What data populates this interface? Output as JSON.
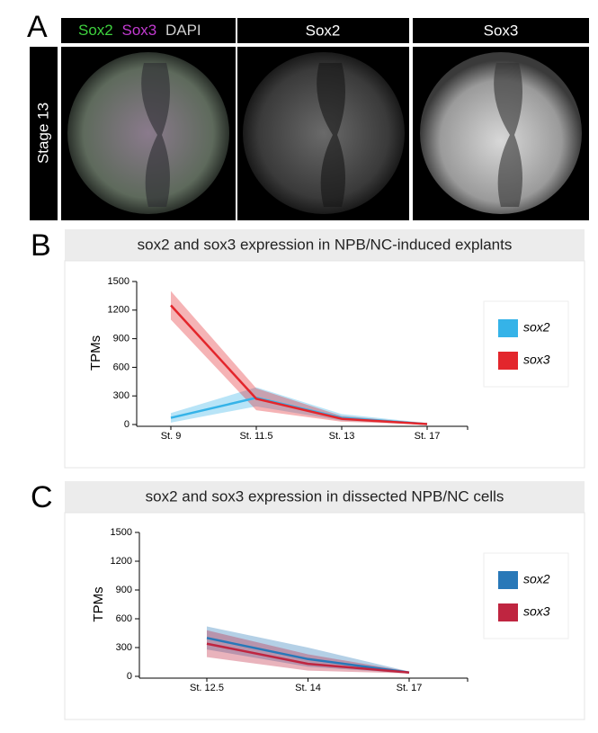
{
  "panel_a": {
    "panel_label": "A",
    "header_labels": [
      "Sox2",
      "Sox3",
      "DAPI"
    ],
    "column_titles": [
      "Sox2",
      "Sox3"
    ],
    "row_label": "Stage 13"
  },
  "chart_data": [
    {
      "type": "line",
      "panel_label": "B",
      "title": "sox2 and sox3 expression in NPB/NC-induced explants",
      "y_label": "TPMs",
      "categories": [
        "St. 9",
        "St. 11.5",
        "St. 13",
        "St. 17"
      ],
      "ylim": [
        0,
        1500
      ],
      "yticks": [
        0,
        300,
        600,
        900,
        1200,
        1500
      ],
      "series": [
        {
          "name": "sox2",
          "color": "#35b3e8",
          "values": [
            70,
            280,
            70,
            5
          ],
          "lower": [
            20,
            190,
            40,
            0
          ],
          "upper": [
            120,
            390,
            110,
            15
          ]
        },
        {
          "name": "sox3",
          "color": "#e3262c",
          "values": [
            1250,
            270,
            60,
            5
          ],
          "lower": [
            1100,
            150,
            30,
            0
          ],
          "upper": [
            1400,
            380,
            90,
            12
          ]
        }
      ]
    },
    {
      "type": "line",
      "panel_label": "C",
      "title": "sox2 and sox3 expression in dissected NPB/NC cells",
      "y_label": "TPMs",
      "categories": [
        "St. 12.5",
        "St. 14",
        "St. 17"
      ],
      "ylim": [
        0,
        1500
      ],
      "yticks": [
        0,
        300,
        600,
        900,
        1200,
        1500
      ],
      "series": [
        {
          "name": "sox2",
          "color": "#2878b8",
          "values": [
            400,
            180,
            40
          ],
          "lower": [
            280,
            100,
            30
          ],
          "upper": [
            520,
            300,
            50
          ]
        },
        {
          "name": "sox3",
          "color": "#bf2540",
          "values": [
            340,
            130,
            40
          ],
          "lower": [
            200,
            60,
            30
          ],
          "upper": [
            480,
            230,
            50
          ]
        }
      ]
    }
  ]
}
